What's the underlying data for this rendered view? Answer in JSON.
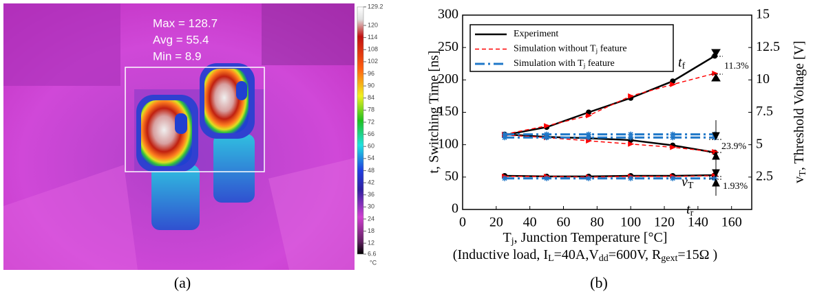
{
  "thermal_image": {
    "stats": [
      "Max = 128.7",
      "Avg = 55.4",
      "Min = 8.9"
    ],
    "colorbar": {
      "lim": [
        6.6,
        129.2
      ],
      "ticks": [
        129.2,
        120,
        114,
        108,
        102,
        96,
        90,
        84,
        78,
        72,
        66,
        60,
        54,
        48,
        42,
        36,
        30,
        24,
        18,
        12,
        6.6
      ],
      "unit": "°C"
    }
  },
  "chart_data": {
    "type": "line",
    "x": [
      25,
      50,
      75,
      100,
      125,
      150
    ],
    "xlim": [
      0,
      172
    ],
    "xticks": [
      0,
      20,
      40,
      60,
      80,
      100,
      120,
      140,
      160
    ],
    "ylim": [
      0,
      300
    ],
    "yticks": [
      0,
      50,
      100,
      150,
      200,
      250,
      300
    ],
    "y2lim": [
      0,
      15
    ],
    "y2ticks": [
      2.5,
      5,
      7.5,
      10,
      12.5,
      15
    ],
    "x_label": [
      "T",
      "j",
      ", Junction Temperature [°C]"
    ],
    "subtitle": [
      "(Inductive load, I",
      "L",
      "=40A,V",
      "dd",
      "=600V, R",
      "gext",
      "=15Ω )"
    ],
    "y_label": "t, Switching Time [ns]",
    "y2_label": [
      "v",
      "T",
      ", Threshold Voltage [V]"
    ],
    "legend": "upper left",
    "series": [
      {
        "name": [
          "Experiment"
        ],
        "color": "#000000",
        "style": "solid",
        "marker": "circle",
        "curves": [
          {
            "values": [
              115,
              127,
              150,
              172,
              198,
              237
            ]
          },
          {
            "values": [
              5.8,
              5.6,
              5.5,
              5.35,
              4.95,
              4.4
            ],
            "axis": "y2"
          },
          {
            "values": [
              52,
              51,
              51,
              52,
              52,
              53
            ]
          }
        ]
      },
      {
        "name": [
          "Simulation without T",
          "j",
          " feature"
        ],
        "color": "#ff0000",
        "style": "dashed",
        "marker": "triangle",
        "curves": [
          {
            "values": [
              116,
              129,
              145,
              175,
              193,
              210
            ]
          },
          {
            "values": [
              5.75,
              5.55,
              5.3,
              5.05,
              4.8,
              4.45
            ],
            "axis": "y2"
          },
          {
            "values": [
              51,
              51,
              50,
              51,
              51,
              52
            ]
          }
        ]
      },
      {
        "name": [
          "Simulation with T",
          "j",
          " feature"
        ],
        "color": "#1f77c8",
        "style": "dashdot",
        "marker": "star",
        "curves": [
          {
            "values": [
              116,
              116,
              116,
              116,
              116,
              116
            ]
          },
          {
            "values": [
              5.55,
              5.55,
              5.55,
              5.55,
              5.55,
              5.55
            ],
            "axis": "y2"
          },
          {
            "values": [
              48,
              48,
              48,
              48,
              48,
              48
            ]
          }
        ]
      }
    ],
    "annotations": {
      "tf": [
        "t",
        "f"
      ],
      "vT": [
        "v",
        "T"
      ],
      "tr": [
        "t",
        "r"
      ],
      "pct_f": "11.3%",
      "pct_v": "23.9%",
      "pct_r": "1.93%"
    }
  },
  "captions": [
    "(a)",
    "(b)"
  ]
}
